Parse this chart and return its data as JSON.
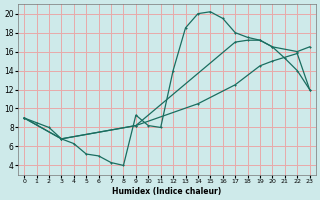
{
  "xlabel": "Humidex (Indice chaleur)",
  "background_color": "#ceeaea",
  "grid_color": "#e8aaaa",
  "line_color": "#1a6e60",
  "xlim": [
    -0.5,
    23.5
  ],
  "ylim": [
    3.0,
    21.0
  ],
  "xticks": [
    0,
    1,
    2,
    3,
    4,
    5,
    6,
    7,
    8,
    9,
    10,
    11,
    12,
    13,
    14,
    15,
    16,
    17,
    18,
    19,
    20,
    21,
    22,
    23
  ],
  "yticks": [
    4,
    6,
    8,
    10,
    12,
    14,
    16,
    18,
    20
  ],
  "line1_x": [
    0,
    1,
    2,
    3,
    4,
    5,
    6,
    7,
    8,
    9,
    10,
    11,
    12,
    13,
    14,
    15,
    16,
    17,
    18,
    19,
    20,
    21,
    22,
    23
  ],
  "line1_y": [
    9.0,
    8.5,
    8.0,
    6.8,
    6.3,
    5.2,
    5.0,
    4.3,
    4.0,
    9.3,
    8.2,
    8.0,
    14.0,
    18.5,
    20.0,
    20.2,
    19.5,
    18.0,
    17.5,
    17.2,
    16.5,
    15.3,
    14.0,
    12.0
  ],
  "line2_x": [
    0,
    3,
    9,
    17,
    18,
    19,
    20,
    22,
    23
  ],
  "line2_y": [
    9.0,
    6.8,
    8.2,
    17.0,
    17.2,
    17.2,
    16.5,
    16.0,
    16.5
  ],
  "line3_x": [
    0,
    3,
    9,
    14,
    17,
    19,
    20,
    22,
    23
  ],
  "line3_y": [
    9.0,
    6.8,
    8.2,
    10.5,
    12.5,
    14.5,
    15.0,
    15.8,
    12.0
  ]
}
